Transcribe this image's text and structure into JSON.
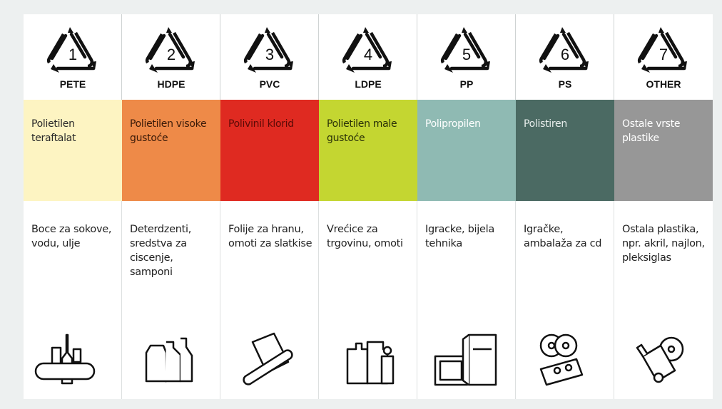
{
  "columns": [
    {
      "number": "1",
      "code": "PETE",
      "name": "Polietilen teraftalat",
      "uses": "Boce za sokove, vodu, ulje"
    },
    {
      "number": "2",
      "code": "HDPE",
      "name": "Polietilen visoke gustoće",
      "uses": "Deterdzenti, sredstva za ciscenje, samponi"
    },
    {
      "number": "3",
      "code": "PVC",
      "name": "Polivinil klorid",
      "uses": "Folije za hranu, omoti za slatkise"
    },
    {
      "number": "4",
      "code": "LDPE",
      "name": "Polietilen male gustoće",
      "uses": "Vrećice za trgovinu, omoti"
    },
    {
      "number": "5",
      "code": "PP",
      "name": "Polipropilen",
      "uses": "Igracke, bijela tehnika"
    },
    {
      "number": "6",
      "code": "PS",
      "name": "Polistiren",
      "uses": "Igračke, ambalaža za cd"
    },
    {
      "number": "7",
      "code": "OTHER",
      "name": "Ostale vrste plastike",
      "uses": "Ostala plastika, npr. akril, najlon, pleksiglas"
    }
  ]
}
